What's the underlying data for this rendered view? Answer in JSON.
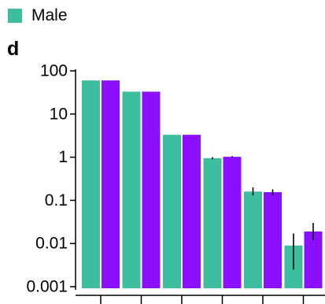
{
  "legend": {
    "entries": [
      {
        "label": "Male",
        "color": "#3dbf9f"
      }
    ]
  },
  "panel": {
    "letter": "d"
  },
  "chart_data": {
    "type": "bar",
    "yscale": "log",
    "ylim": [
      0.001,
      100
    ],
    "yticks": [
      {
        "value": 100,
        "label": "100"
      },
      {
        "value": 10,
        "label": "10"
      },
      {
        "value": 1,
        "label": "1"
      },
      {
        "value": 0.1,
        "label": "0.1"
      },
      {
        "value": 0.01,
        "label": "0.01"
      },
      {
        "value": 0.001,
        "label": "0.001"
      }
    ],
    "categories": [
      "",
      "",
      "",
      "",
      "",
      ""
    ],
    "series": [
      {
        "name": "Male",
        "color": "#3dbf9f",
        "values": [
          60,
          33,
          3.3,
          0.95,
          0.16,
          0.009
        ],
        "errors": [
          null,
          null,
          null,
          [
            0.9,
            1.0
          ],
          [
            0.13,
            0.2
          ],
          [
            0.0025,
            0.017
          ]
        ]
      },
      {
        "color": "#8a10ff",
        "values": [
          60,
          33,
          3.3,
          1.02,
          0.155,
          0.019
        ],
        "errors": [
          null,
          null,
          null,
          [
            0.98,
            1.06
          ],
          [
            0.13,
            0.18
          ],
          [
            0.012,
            0.03
          ]
        ]
      }
    ]
  }
}
